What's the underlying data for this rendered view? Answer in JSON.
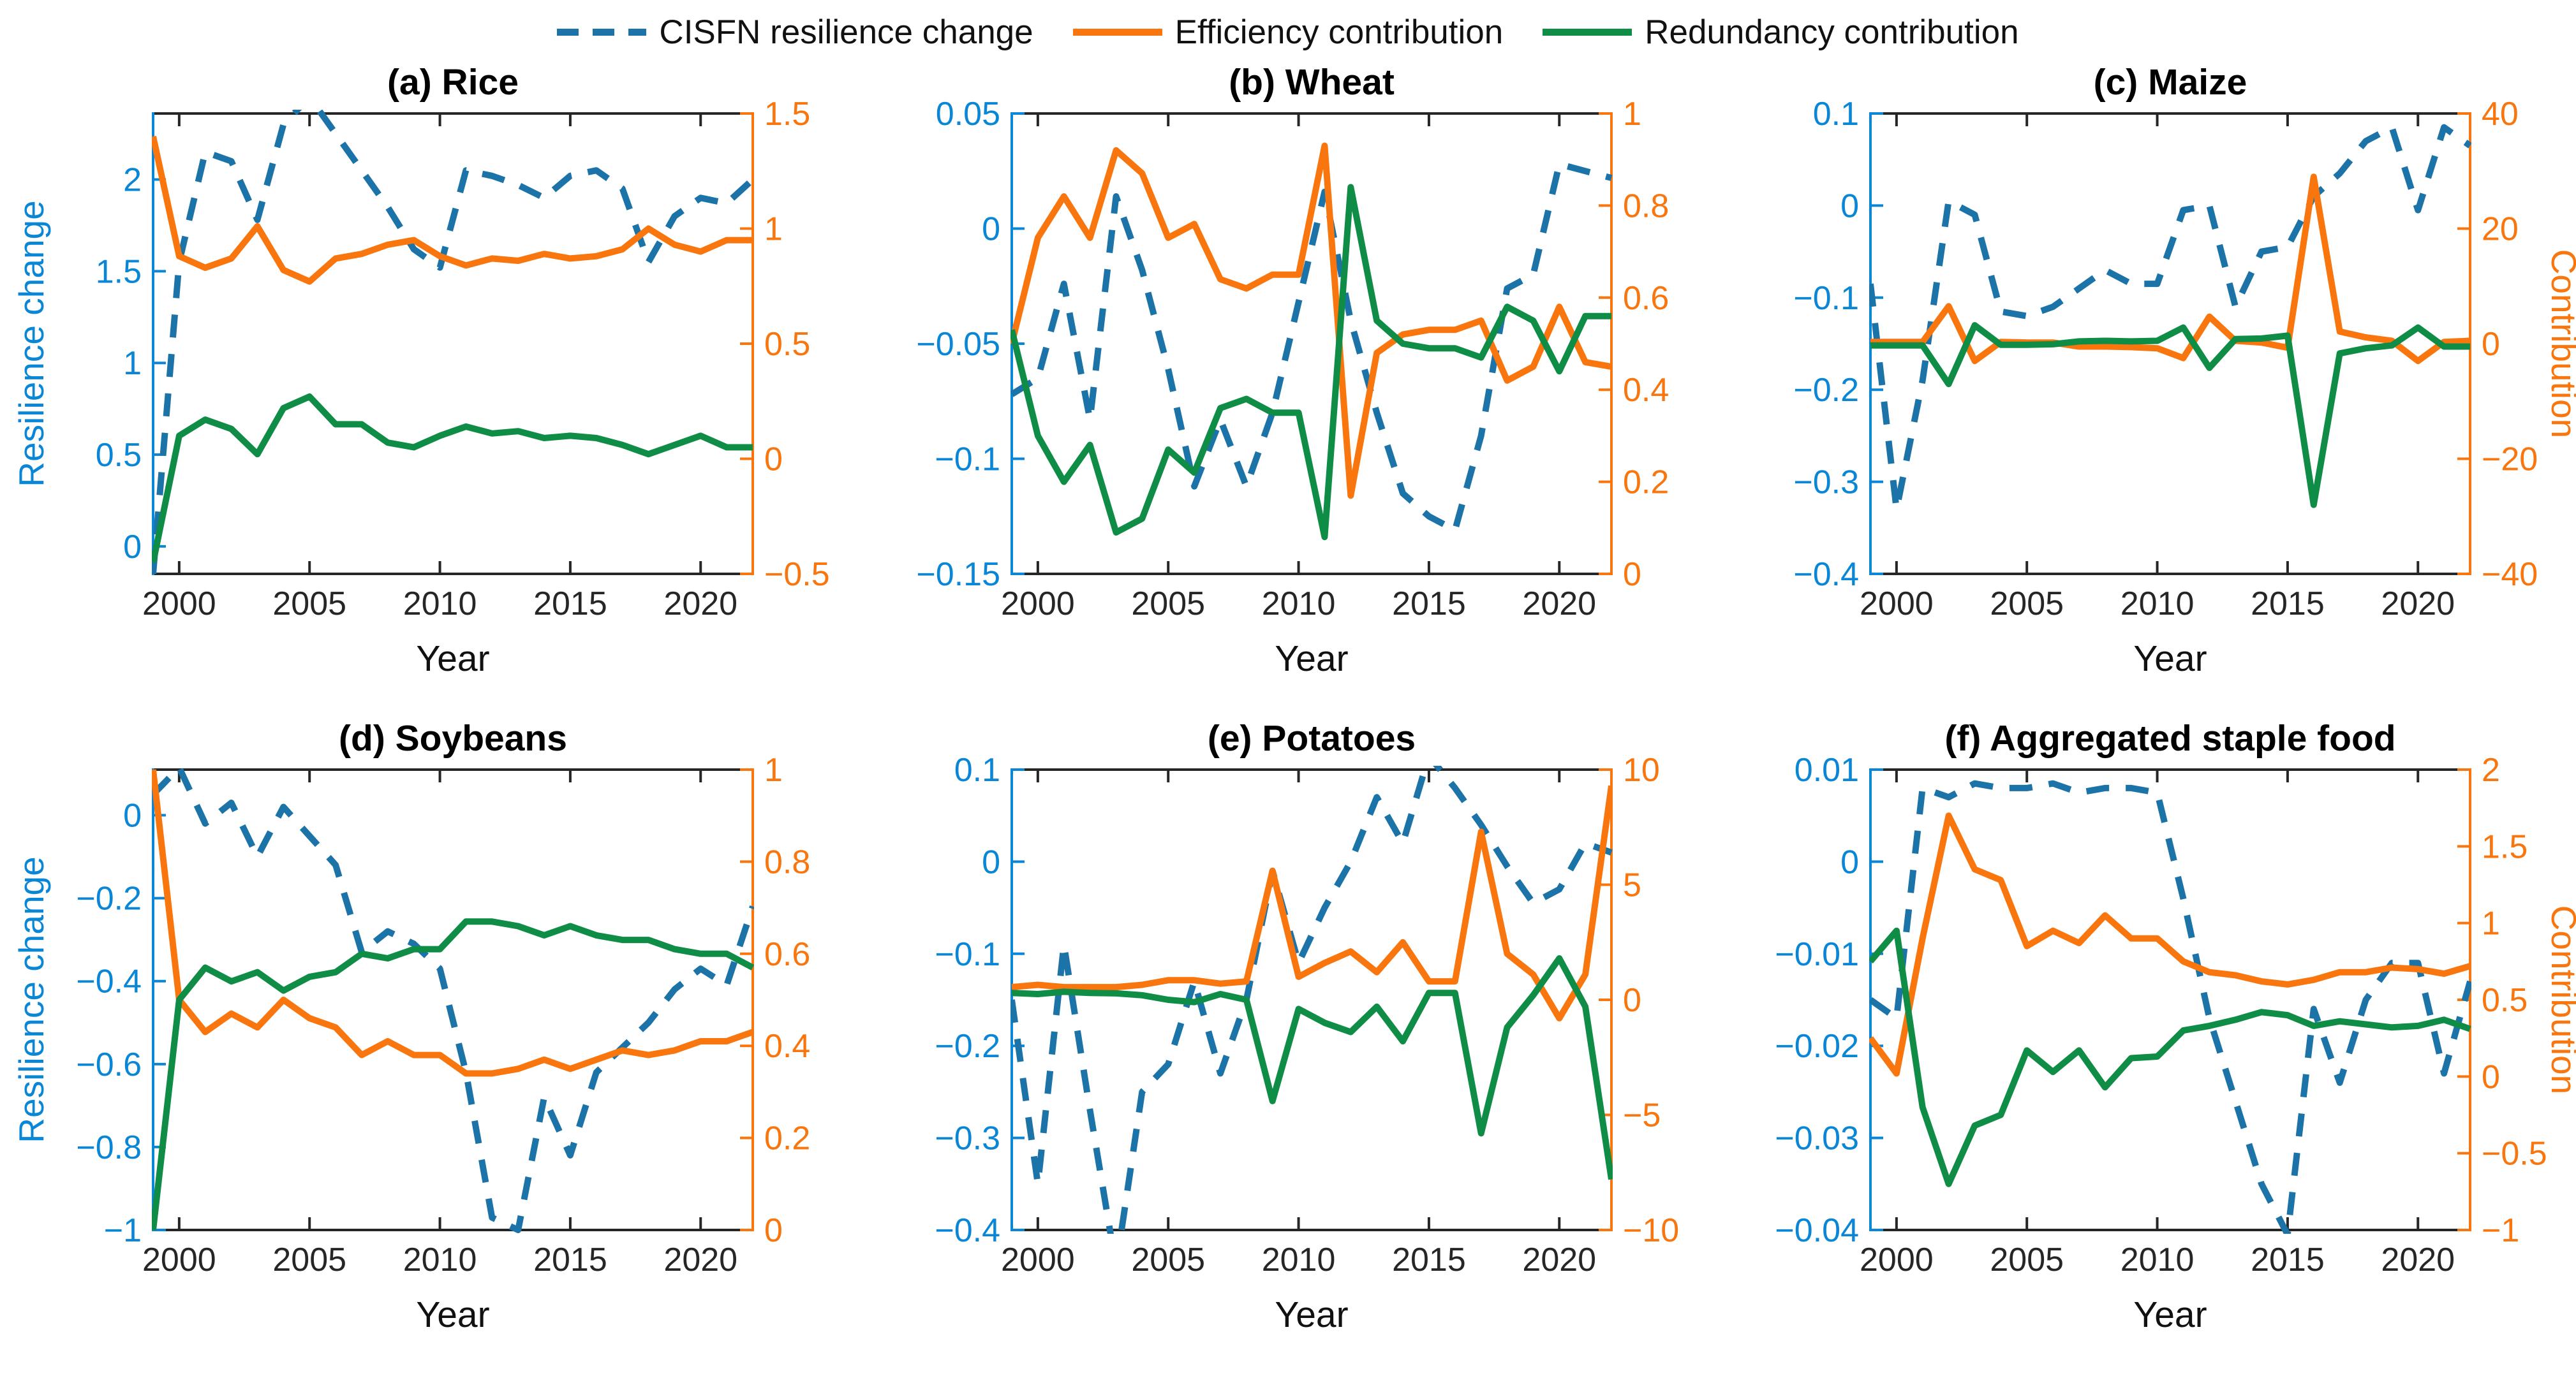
{
  "colors": {
    "blue_line": "#1b73a8",
    "blue_axis": "#0a86d6",
    "orange": "#f8760d",
    "green": "#0f8c45",
    "dark": "#262626"
  },
  "legend": {
    "items": [
      {
        "label": "CISFN resilience change",
        "color": "blue_line",
        "dash": true
      },
      {
        "label": "Efficiency contribution",
        "color": "orange",
        "dash": false
      },
      {
        "label": "Redundancy contribution",
        "color": "green",
        "dash": false
      }
    ]
  },
  "chart_data": [
    {
      "type": "line",
      "title": "(a) Rice",
      "xlabel": "Year",
      "x": [
        1999,
        2000,
        2001,
        2002,
        2003,
        2004,
        2005,
        2006,
        2007,
        2008,
        2009,
        2010,
        2011,
        2012,
        2013,
        2014,
        2015,
        2016,
        2017,
        2018,
        2019,
        2020,
        2021,
        2022
      ],
      "xlim": [
        1999,
        2022
      ],
      "xticks": [
        2000,
        2005,
        2010,
        2015,
        2020
      ],
      "left_axis": {
        "label": "Resilience change",
        "lim": [
          -0.15,
          2.36
        ],
        "ticks": [
          0,
          0.5,
          1,
          1.5,
          2
        ]
      },
      "right_axis": {
        "label": "",
        "lim": [
          -0.5,
          1.5
        ],
        "ticks": [
          -0.5,
          0,
          0.5,
          1,
          1.5
        ]
      },
      "series": [
        {
          "name": "CISFN resilience change",
          "axis": "left",
          "style": "dashed",
          "color": "blue_line",
          "values": [
            -0.15,
            1.55,
            2.15,
            2.1,
            1.78,
            2.3,
            2.45,
            2.25,
            2.05,
            1.85,
            1.62,
            1.52,
            2.05,
            2.02,
            1.97,
            1.9,
            2.02,
            2.05,
            1.95,
            1.55,
            1.8,
            1.9,
            1.87,
            2.0
          ]
        },
        {
          "name": "Efficiency contribution",
          "axis": "right",
          "style": "solid",
          "color": "orange",
          "values": [
            1.4,
            0.88,
            0.83,
            0.87,
            1.01,
            0.82,
            0.77,
            0.87,
            0.89,
            0.93,
            0.95,
            0.88,
            0.84,
            0.87,
            0.86,
            0.89,
            0.87,
            0.88,
            0.91,
            1.0,
            0.93,
            0.9,
            0.95,
            0.95
          ]
        },
        {
          "name": "Redundancy contribution",
          "axis": "right",
          "style": "solid",
          "color": "green",
          "values": [
            -0.45,
            0.1,
            0.17,
            0.13,
            0.02,
            0.22,
            0.27,
            0.15,
            0.15,
            0.07,
            0.05,
            0.1,
            0.14,
            0.11,
            0.12,
            0.09,
            0.1,
            0.09,
            0.06,
            0.02,
            0.06,
            0.1,
            0.05,
            0.05
          ]
        }
      ]
    },
    {
      "type": "line",
      "title": "(b) Wheat",
      "xlabel": "Year",
      "x": [
        1999,
        2000,
        2001,
        2002,
        2003,
        2004,
        2005,
        2006,
        2007,
        2008,
        2009,
        2010,
        2011,
        2012,
        2013,
        2014,
        2015,
        2016,
        2017,
        2018,
        2019,
        2020,
        2021,
        2022
      ],
      "xlim": [
        1999,
        2022
      ],
      "xticks": [
        2000,
        2005,
        2010,
        2015,
        2020
      ],
      "left_axis": {
        "label": "",
        "lim": [
          -0.15,
          0.05
        ],
        "ticks": [
          -0.15,
          -0.1,
          -0.05,
          0,
          0.05
        ]
      },
      "right_axis": {
        "label": "",
        "lim": [
          0,
          1
        ],
        "ticks": [
          0,
          0.2,
          0.4,
          0.6,
          0.8,
          1
        ]
      },
      "series": [
        {
          "name": "CISFN resilience change",
          "axis": "left",
          "style": "dashed",
          "color": "blue_line",
          "values": [
            -0.072,
            -0.065,
            -0.024,
            -0.083,
            0.014,
            -0.018,
            -0.061,
            -0.112,
            -0.083,
            -0.112,
            -0.08,
            -0.032,
            0.016,
            -0.04,
            -0.08,
            -0.115,
            -0.125,
            -0.131,
            -0.09,
            -0.026,
            -0.02,
            0.028,
            0.025,
            0.022
          ]
        },
        {
          "name": "Efficiency contribution",
          "axis": "right",
          "style": "solid",
          "color": "orange",
          "values": [
            0.5,
            0.73,
            0.82,
            0.73,
            0.92,
            0.87,
            0.73,
            0.76,
            0.64,
            0.62,
            0.65,
            0.65,
            0.93,
            0.17,
            0.48,
            0.52,
            0.53,
            0.53,
            0.55,
            0.42,
            0.45,
            0.58,
            0.46,
            0.45
          ]
        },
        {
          "name": "Redundancy contribution",
          "axis": "right",
          "style": "solid",
          "color": "green",
          "values": [
            0.53,
            0.3,
            0.2,
            0.28,
            0.09,
            0.12,
            0.27,
            0.22,
            0.36,
            0.38,
            0.35,
            0.35,
            0.08,
            0.84,
            0.55,
            0.5,
            0.49,
            0.49,
            0.47,
            0.58,
            0.55,
            0.44,
            0.56,
            0.56
          ]
        }
      ]
    },
    {
      "type": "line",
      "title": "(c) Maize",
      "xlabel": "Year",
      "x": [
        1999,
        2000,
        2001,
        2002,
        2003,
        2004,
        2005,
        2006,
        2007,
        2008,
        2009,
        2010,
        2011,
        2012,
        2013,
        2014,
        2015,
        2016,
        2017,
        2018,
        2019,
        2020,
        2021,
        2022
      ],
      "xlim": [
        1999,
        2022
      ],
      "xticks": [
        2000,
        2005,
        2010,
        2015,
        2020
      ],
      "left_axis": {
        "label": "",
        "lim": [
          -0.4,
          0.1
        ],
        "ticks": [
          -0.4,
          -0.3,
          -0.2,
          -0.1,
          0,
          0.1
        ]
      },
      "right_axis": {
        "label": "Contribution",
        "lim": [
          -40,
          40
        ],
        "ticks": [
          -40,
          -20,
          0,
          20,
          40
        ]
      },
      "series": [
        {
          "name": "CISFN resilience change",
          "axis": "left",
          "style": "dashed",
          "color": "blue_line",
          "values": [
            -0.085,
            -0.33,
            -0.19,
            0.005,
            -0.01,
            -0.115,
            -0.12,
            -0.11,
            -0.09,
            -0.07,
            -0.085,
            -0.085,
            -0.005,
            0.0,
            -0.11,
            -0.05,
            -0.045,
            0.01,
            0.035,
            0.07,
            0.085,
            -0.005,
            0.085,
            0.065
          ]
        },
        {
          "name": "Efficiency contribution",
          "axis": "right",
          "style": "solid",
          "color": "orange",
          "values": [
            0.3,
            0.3,
            0.3,
            6.5,
            -3.0,
            0.3,
            0.2,
            0.2,
            -0.5,
            -0.5,
            -0.6,
            -0.8,
            -2.5,
            4.7,
            0.5,
            0.2,
            -0.7,
            29,
            2.1,
            1.1,
            0.5,
            -3.0,
            0.3,
            0.5
          ]
        },
        {
          "name": "Redundancy contribution",
          "axis": "right",
          "style": "solid",
          "color": "green",
          "values": [
            -0.3,
            -0.3,
            -0.3,
            -7.0,
            3.2,
            -0.2,
            -0.2,
            -0.1,
            0.4,
            0.5,
            0.4,
            0.5,
            2.8,
            -4.2,
            0.8,
            0.9,
            1.4,
            -28,
            -1.7,
            -0.8,
            -0.3,
            2.8,
            -0.5,
            -0.5
          ]
        }
      ]
    },
    {
      "type": "line",
      "title": "(d) Soybeans",
      "xlabel": "Year",
      "x": [
        1999,
        2000,
        2001,
        2002,
        2003,
        2004,
        2005,
        2006,
        2007,
        2008,
        2009,
        2010,
        2011,
        2012,
        2013,
        2014,
        2015,
        2016,
        2017,
        2018,
        2019,
        2020,
        2021,
        2022
      ],
      "xlim": [
        1999,
        2022
      ],
      "xticks": [
        2000,
        2005,
        2010,
        2015,
        2020
      ],
      "left_axis": {
        "label": "Resilience change",
        "lim": [
          -1,
          0.11
        ],
        "ticks": [
          -1,
          -0.8,
          -0.6,
          -0.4,
          -0.2,
          0
        ]
      },
      "right_axis": {
        "label": "",
        "lim": [
          0,
          1
        ],
        "ticks": [
          0,
          0.2,
          0.4,
          0.6,
          0.8,
          1
        ]
      },
      "series": [
        {
          "name": "CISFN resilience change",
          "axis": "left",
          "style": "dashed",
          "color": "blue_line",
          "values": [
            0.05,
            0.115,
            -0.02,
            0.03,
            -0.1,
            0.02,
            -0.05,
            -0.12,
            -0.33,
            -0.28,
            -0.31,
            -0.37,
            -0.62,
            -0.97,
            -1.0,
            -0.68,
            -0.82,
            -0.62,
            -0.56,
            -0.5,
            -0.42,
            -0.37,
            -0.41,
            -0.22
          ]
        },
        {
          "name": "Efficiency contribution",
          "axis": "right",
          "style": "solid",
          "color": "orange",
          "values": [
            1.0,
            0.5,
            0.43,
            0.47,
            0.44,
            0.5,
            0.46,
            0.44,
            0.38,
            0.41,
            0.38,
            0.38,
            0.34,
            0.34,
            0.35,
            0.37,
            0.35,
            0.37,
            0.39,
            0.38,
            0.39,
            0.41,
            0.41,
            0.43
          ]
        },
        {
          "name": "Redundancy contribution",
          "axis": "right",
          "style": "solid",
          "color": "green",
          "values": [
            0.0,
            0.5,
            0.57,
            0.54,
            0.56,
            0.52,
            0.55,
            0.56,
            0.6,
            0.59,
            0.61,
            0.61,
            0.67,
            0.67,
            0.66,
            0.64,
            0.66,
            0.64,
            0.63,
            0.63,
            0.61,
            0.6,
            0.6,
            0.57
          ]
        }
      ]
    },
    {
      "type": "line",
      "title": "(e) Potatoes",
      "xlabel": "Year",
      "x": [
        1999,
        2000,
        2001,
        2002,
        2003,
        2004,
        2005,
        2006,
        2007,
        2008,
        2009,
        2010,
        2011,
        2012,
        2013,
        2014,
        2015,
        2016,
        2017,
        2018,
        2019,
        2020,
        2021,
        2022
      ],
      "xlim": [
        1999,
        2022
      ],
      "xticks": [
        2000,
        2005,
        2010,
        2015,
        2020
      ],
      "left_axis": {
        "label": "",
        "lim": [
          -0.4,
          0.1
        ],
        "ticks": [
          -0.4,
          -0.3,
          -0.2,
          -0.1,
          0,
          0.1
        ]
      },
      "right_axis": {
        "label": "",
        "lim": [
          -10,
          10
        ],
        "ticks": [
          -10,
          -5,
          0,
          5,
          10
        ]
      },
      "series": [
        {
          "name": "CISFN resilience change",
          "axis": "left",
          "style": "dashed",
          "color": "blue_line",
          "values": [
            -0.15,
            -0.35,
            -0.09,
            -0.27,
            -0.44,
            -0.25,
            -0.22,
            -0.13,
            -0.23,
            -0.15,
            -0.01,
            -0.11,
            -0.05,
            0.0,
            0.07,
            0.02,
            0.115,
            0.08,
            0.04,
            -0.005,
            -0.045,
            -0.03,
            0.02,
            0.01
          ]
        },
        {
          "name": "Efficiency contribution",
          "axis": "right",
          "style": "solid",
          "color": "orange",
          "values": [
            0.55,
            0.65,
            0.55,
            0.55,
            0.55,
            0.65,
            0.85,
            0.85,
            0.7,
            0.8,
            5.6,
            1.0,
            1.6,
            2.1,
            1.2,
            2.5,
            0.8,
            0.8,
            7.3,
            2.0,
            1.1,
            -0.8,
            1.1,
            9.3
          ]
        },
        {
          "name": "Redundancy contribution",
          "axis": "right",
          "style": "solid",
          "color": "green",
          "values": [
            0.3,
            0.25,
            0.35,
            0.3,
            0.28,
            0.2,
            0.0,
            -0.1,
            0.25,
            0.0,
            -4.4,
            -0.4,
            -1.0,
            -1.4,
            -0.3,
            -1.8,
            0.3,
            0.3,
            -5.8,
            -1.2,
            0.2,
            1.8,
            -0.3,
            -7.8
          ]
        }
      ]
    },
    {
      "type": "line",
      "title": "(f) Aggregated staple food",
      "xlabel": "Year",
      "x": [
        1999,
        2000,
        2001,
        2002,
        2003,
        2004,
        2005,
        2006,
        2007,
        2008,
        2009,
        2010,
        2011,
        2012,
        2013,
        2014,
        2015,
        2016,
        2017,
        2018,
        2019,
        2020,
        2021,
        2022
      ],
      "xlim": [
        1999,
        2022
      ],
      "xticks": [
        2000,
        2005,
        2010,
        2015,
        2020
      ],
      "left_axis": {
        "label": "",
        "lim": [
          -0.04,
          0.01
        ],
        "ticks": [
          -0.04,
          -0.03,
          -0.02,
          -0.01,
          0,
          0.01
        ]
      },
      "right_axis": {
        "label": "Contribution",
        "lim": [
          -1,
          2
        ],
        "ticks": [
          -1,
          -0.5,
          0,
          0.5,
          1,
          1.5,
          2
        ]
      },
      "series": [
        {
          "name": "CISFN resilience change",
          "axis": "left",
          "style": "dashed",
          "color": "blue_line",
          "values": [
            -0.015,
            -0.017,
            0.008,
            0.007,
            0.0085,
            0.008,
            0.008,
            0.0085,
            0.0075,
            0.008,
            0.008,
            0.0075,
            -0.004,
            -0.017,
            -0.026,
            -0.035,
            -0.0405,
            -0.016,
            -0.024,
            -0.015,
            -0.011,
            -0.011,
            -0.023,
            -0.013
          ]
        },
        {
          "name": "Efficiency contribution",
          "axis": "right",
          "style": "solid",
          "color": "orange",
          "values": [
            0.25,
            0.02,
            0.9,
            1.7,
            1.35,
            1.28,
            0.85,
            0.95,
            0.87,
            1.05,
            0.9,
            0.9,
            0.75,
            0.68,
            0.66,
            0.62,
            0.6,
            0.63,
            0.68,
            0.68,
            0.71,
            0.7,
            0.67,
            0.72
          ]
        },
        {
          "name": "Redundancy contribution",
          "axis": "right",
          "style": "solid",
          "color": "green",
          "values": [
            0.75,
            0.95,
            -0.2,
            -0.7,
            -0.32,
            -0.25,
            0.17,
            0.03,
            0.17,
            -0.07,
            0.12,
            0.13,
            0.3,
            0.33,
            0.37,
            0.42,
            0.4,
            0.33,
            0.36,
            0.34,
            0.32,
            0.33,
            0.37,
            0.31
          ]
        }
      ]
    }
  ]
}
